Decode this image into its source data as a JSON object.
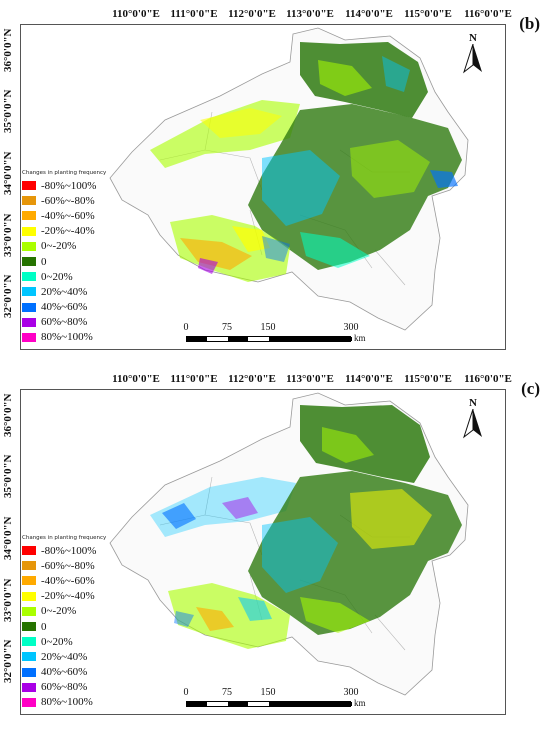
{
  "panels": [
    {
      "label": "(b)",
      "longitude_labels": [
        "110°0'0\"E",
        "111°0'0\"E",
        "112°0'0\"E",
        "113°0'0\"E",
        "114°0'0\"E",
        "115°0'0\"E",
        "116°0'0\"E"
      ],
      "latitude_labels": [
        "36°0'0\"N",
        "35°0'0\"N",
        "34°0'0\"N",
        "33°0'0\"N",
        "32°0'0\"N"
      ],
      "north_label": "N"
    },
    {
      "label": "(c)",
      "longitude_labels": [
        "110°0'0\"E",
        "111°0'0\"E",
        "112°0'0\"E",
        "113°0'0\"E",
        "114°0'0\"E",
        "115°0'0\"E",
        "116°0'0\"E"
      ],
      "latitude_labels": [
        "36°0'0\"N",
        "35°0'0\"N",
        "34°0'0\"N",
        "33°0'0\"N",
        "32°0'0\"N"
      ],
      "north_label": "N"
    }
  ],
  "legend": {
    "title": "Changes in planting frequency",
    "items": [
      {
        "label": "-80%~100%",
        "color": "#ff0000"
      },
      {
        "label": "-60%~-80%",
        "color": "#e6960a"
      },
      {
        "label": "-40%~-60%",
        "color": "#ffaa00"
      },
      {
        "label": "-20%~-40%",
        "color": "#ffff00"
      },
      {
        "label": "0~-20%",
        "color": "#aaff00"
      },
      {
        "label": "0",
        "color": "#267300"
      },
      {
        "label": "0~20%",
        "color": "#00ffc5"
      },
      {
        "label": "20%~40%",
        "color": "#00c5ff"
      },
      {
        "label": "40%~60%",
        "color": "#0070ff"
      },
      {
        "label": "60%~80%",
        "color": "#a900e6"
      },
      {
        "label": "80%~100%",
        "color": "#ff00c5"
      }
    ]
  },
  "scale_bar": {
    "ticks": [
      "0",
      "75",
      "150",
      "300"
    ],
    "unit": "km"
  }
}
